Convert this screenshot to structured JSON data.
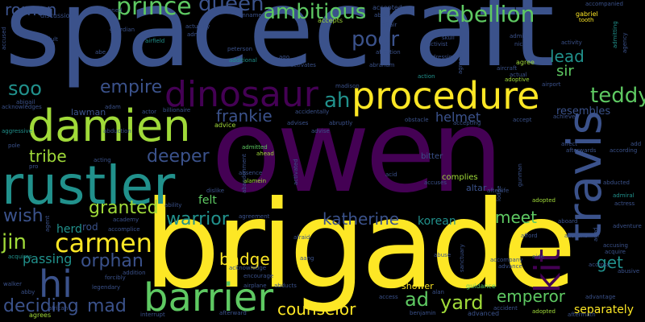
{
  "background": "#000000",
  "palette": {
    "yellow": "#fde725",
    "lime": "#a0da39",
    "green": "#4ac16d",
    "teal": "#1fa187",
    "cyan": "#277f8e",
    "blue": "#365c8d",
    "indigo": "#46327e",
    "purple": "#440154"
  },
  "words": [
    {
      "text": "spacecraft",
      "color": "#3b528b"
    },
    {
      "text": "owen",
      "color": "#440154"
    },
    {
      "text": "brigade",
      "color": "#fde725"
    },
    {
      "text": "rustler",
      "color": "#21918c"
    },
    {
      "text": "damien",
      "color": "#a0da39"
    },
    {
      "text": "procedure",
      "color": "#fde725"
    },
    {
      "text": "travis",
      "color": "#3b528b"
    },
    {
      "text": "dinosaur",
      "color": "#440154"
    },
    {
      "text": "barrier",
      "color": "#5ec962"
    },
    {
      "text": "hi",
      "color": "#3b528b"
    },
    {
      "text": "carmen",
      "color": "#fde725"
    },
    {
      "text": "kit",
      "color": "#440154"
    },
    {
      "text": "ambitious",
      "color": "#5ec962"
    },
    {
      "text": "rebellion",
      "color": "#5ec962"
    },
    {
      "text": "prince",
      "color": "#5ec962"
    },
    {
      "text": "queen",
      "color": "#3b528b"
    },
    {
      "text": "roman",
      "color": "#3b528b"
    },
    {
      "text": "poor",
      "color": "#3b528b"
    },
    {
      "text": "empire",
      "color": "#3b528b"
    },
    {
      "text": "soo",
      "color": "#21918c"
    },
    {
      "text": "ah",
      "color": "#21918c"
    },
    {
      "text": "teddy",
      "color": "#5ec962"
    },
    {
      "text": "lead",
      "color": "#21918c"
    },
    {
      "text": "sir",
      "color": "#5ec962"
    },
    {
      "text": "frankie",
      "color": "#3b528b"
    },
    {
      "text": "tribe",
      "color": "#a0da39"
    },
    {
      "text": "deeper",
      "color": "#3b528b"
    },
    {
      "text": "granted",
      "color": "#a0da39"
    },
    {
      "text": "wish",
      "color": "#3b528b"
    },
    {
      "text": "warrior",
      "color": "#21918c"
    },
    {
      "text": "katherine",
      "color": "#3b528b"
    },
    {
      "text": "meet",
      "color": "#5ec962"
    },
    {
      "text": "jin",
      "color": "#a0da39"
    },
    {
      "text": "orphan",
      "color": "#3b528b"
    },
    {
      "text": "badge",
      "color": "#fde725"
    },
    {
      "text": "passing",
      "color": "#21918c"
    },
    {
      "text": "deciding",
      "color": "#3b528b"
    },
    {
      "text": "mad",
      "color": "#3b528b"
    },
    {
      "text": "counselor",
      "color": "#fde725"
    },
    {
      "text": "ad",
      "color": "#5ec962"
    },
    {
      "text": "yard",
      "color": "#a0da39"
    },
    {
      "text": "emperor",
      "color": "#5ec962"
    },
    {
      "text": "get",
      "color": "#21918c"
    },
    {
      "text": "separately",
      "color": "#fde725"
    },
    {
      "text": "helmet",
      "color": "#3b528b"
    },
    {
      "text": "resembles",
      "color": "#3b528b"
    },
    {
      "text": "korean",
      "color": "#21918c"
    },
    {
      "text": "herd",
      "color": "#21918c"
    },
    {
      "text": "rod",
      "color": "#3b528b"
    },
    {
      "text": "felt",
      "color": "#5ec962"
    },
    {
      "text": "bitter",
      "color": "#3b528b"
    },
    {
      "text": "complies",
      "color": "#a0da39"
    },
    {
      "text": "altar",
      "color": "#3b528b"
    },
    {
      "text": "shower",
      "color": "#fde725"
    },
    {
      "text": "discussion",
      "color": "#3b528b"
    },
    {
      "text": "abandoned",
      "color": "#3b528b"
    },
    {
      "text": "accepted",
      "color": "#3b528b"
    },
    {
      "text": "accompanied",
      "color": "#3b528b"
    },
    {
      "text": "gabriel",
      "color": "#fde725"
    },
    {
      "text": "tooth",
      "color": "#fde725"
    },
    {
      "text": "accused",
      "color": "#3b528b"
    },
    {
      "text": "adult",
      "color": "#3b528b"
    },
    {
      "text": "guardian",
      "color": "#3b528b"
    },
    {
      "text": "unnamed",
      "color": "#3b528b"
    },
    {
      "text": "abbey",
      "color": "#3b528b"
    },
    {
      "text": "affair",
      "color": "#3b528b"
    },
    {
      "text": "accepts",
      "color": "#a0da39"
    },
    {
      "text": "skull",
      "color": "#3b528b"
    },
    {
      "text": "activist",
      "color": "#3b528b"
    },
    {
      "text": "admits",
      "color": "#3b528b"
    },
    {
      "text": "nick",
      "color": "#3b528b"
    },
    {
      "text": "activity",
      "color": "#3b528b"
    },
    {
      "text": "agency",
      "color": "#3b528b"
    },
    {
      "text": "airfield",
      "color": "#21918c"
    },
    {
      "text": "admit",
      "color": "#3b528b"
    },
    {
      "text": "actuality",
      "color": "#3b528b"
    },
    {
      "text": "peterson",
      "color": "#3b528b"
    },
    {
      "text": "additional",
      "color": "#21918c"
    },
    {
      "text": "ago",
      "color": "#3b528b"
    },
    {
      "text": "activates",
      "color": "#3b528b"
    },
    {
      "text": "abraham",
      "color": "#3b528b"
    },
    {
      "text": "affection",
      "color": "#3b528b"
    },
    {
      "text": "dressing",
      "color": "#3b528b"
    },
    {
      "text": "agree",
      "color": "#a0da39"
    },
    {
      "text": "action",
      "color": "#21918c"
    },
    {
      "text": "adoptive",
      "color": "#a0da39"
    },
    {
      "text": "madison",
      "color": "#3b528b"
    },
    {
      "text": "airport",
      "color": "#3b528b"
    },
    {
      "text": "abigail",
      "color": "#3b528b"
    },
    {
      "text": "acknowledges",
      "color": "#3b528b"
    },
    {
      "text": "lawman",
      "color": "#3b528b"
    },
    {
      "text": "adam",
      "color": "#3b528b"
    },
    {
      "text": "actor",
      "color": "#3b528b"
    },
    {
      "text": "billionaire",
      "color": "#3b528b"
    },
    {
      "text": "accidentally",
      "color": "#3b528b"
    },
    {
      "text": "advise",
      "color": "#3b528b"
    },
    {
      "text": "advice",
      "color": "#a0da39"
    },
    {
      "text": "advises",
      "color": "#3b528b"
    },
    {
      "text": "abruptly",
      "color": "#3b528b"
    },
    {
      "text": "obstacle",
      "color": "#3b528b"
    },
    {
      "text": "accepting",
      "color": "#3b528b"
    },
    {
      "text": "accept",
      "color": "#3b528b"
    },
    {
      "text": "achieve",
      "color": "#3b528b"
    },
    {
      "text": "aggressive",
      "color": "#21918c"
    },
    {
      "text": "abduction",
      "color": "#3b528b"
    },
    {
      "text": "admitted",
      "color": "#5ec962"
    },
    {
      "text": "ahead",
      "color": "#a0da39"
    },
    {
      "text": "affect",
      "color": "#3b528b"
    },
    {
      "text": "afterwards",
      "color": "#3b528b"
    },
    {
      "text": "according",
      "color": "#3b528b"
    },
    {
      "text": "pole",
      "color": "#3b528b"
    },
    {
      "text": "pro",
      "color": "#3b528b"
    },
    {
      "text": "acting",
      "color": "#3b528b"
    },
    {
      "text": "absence",
      "color": "#3b528b"
    },
    {
      "text": "alamein",
      "color": "#a0da39"
    },
    {
      "text": "accuses",
      "color": "#3b528b"
    },
    {
      "text": "afterlife",
      "color": "#3b528b"
    },
    {
      "text": "abducted",
      "color": "#3b528b"
    },
    {
      "text": "admiral",
      "color": "#21918c"
    },
    {
      "text": "actress",
      "color": "#3b528b"
    },
    {
      "text": "dislike",
      "color": "#3b528b"
    },
    {
      "text": "acid",
      "color": "#3b528b"
    },
    {
      "text": "ability",
      "color": "#3b528b"
    },
    {
      "text": "academy",
      "color": "#3b528b"
    },
    {
      "text": "accomplice",
      "color": "#3b528b"
    },
    {
      "text": "agreement",
      "color": "#3b528b"
    },
    {
      "text": "aboard",
      "color": "#3b528b"
    },
    {
      "text": "adventure",
      "color": "#3b528b"
    },
    {
      "text": "adopted",
      "color": "#a0da39"
    },
    {
      "text": "account",
      "color": "#3b528b"
    },
    {
      "text": "accusing",
      "color": "#3b528b"
    },
    {
      "text": "acquire",
      "color": "#3b528b"
    },
    {
      "text": "acquires",
      "color": "#21918c"
    },
    {
      "text": "forcibly",
      "color": "#3b528b"
    },
    {
      "text": "addition",
      "color": "#3b528b"
    },
    {
      "text": "acknowledge",
      "color": "#3b528b"
    },
    {
      "text": "encourage",
      "color": "#3b528b"
    },
    {
      "text": "afraid",
      "color": "#3b528b"
    },
    {
      "text": "aang",
      "color": "#3b528b"
    },
    {
      "text": "abuse",
      "color": "#3b528b"
    },
    {
      "text": "guidance",
      "color": "#5ec962"
    },
    {
      "text": "advance",
      "color": "#3b528b"
    },
    {
      "text": "accross",
      "color": "#3b528b"
    },
    {
      "text": "abusive",
      "color": "#3b528b"
    },
    {
      "text": "advantage",
      "color": "#3b528b"
    },
    {
      "text": "walker",
      "color": "#3b528b"
    },
    {
      "text": "abby",
      "color": "#3b528b"
    },
    {
      "text": "legendary",
      "color": "#3b528b"
    },
    {
      "text": "airplane",
      "color": "#3b528b"
    },
    {
      "text": "abducts",
      "color": "#3b528b"
    },
    {
      "text": "alan",
      "color": "#3b528b"
    },
    {
      "text": "accident",
      "color": "#3b528b"
    },
    {
      "text": "agrees",
      "color": "#a0da39"
    },
    {
      "text": "african",
      "color": "#3b528b"
    },
    {
      "text": "interrupt",
      "color": "#3b528b"
    },
    {
      "text": "afterward",
      "color": "#3b528b"
    },
    {
      "text": "access",
      "color": "#3b528b"
    },
    {
      "text": "benjamin",
      "color": "#3b528b"
    },
    {
      "text": "advanced",
      "color": "#3b528b"
    },
    {
      "text": "adopted",
      "color": "#a0da39"
    },
    {
      "text": "aftermath",
      "color": "#3b528b"
    },
    {
      "text": "gunman",
      "color": "#3b528b"
    },
    {
      "text": "lodge",
      "color": "#3b528b"
    },
    {
      "text": "admitting",
      "color": "#21918c"
    },
    {
      "text": "activated",
      "color": "#3b528b"
    },
    {
      "text": "abandonment",
      "color": "#3b528b"
    },
    {
      "text": "sanctuary",
      "color": "#3b528b"
    },
    {
      "text": "accompany",
      "color": "#3b528b"
    },
    {
      "text": "afford",
      "color": "#3b528b"
    },
    {
      "text": "agent",
      "color": "#3b528b"
    },
    {
      "text": "aircraft",
      "color": "#3b528b"
    },
    {
      "text": "agreeing",
      "color": "#3b528b"
    },
    {
      "text": "actual",
      "color": "#3b528b"
    },
    {
      "text": "abe",
      "color": "#3b528b"
    },
    {
      "text": "ended",
      "color": "#3b528b"
    },
    {
      "text": "aged",
      "color": "#3b528b"
    },
    {
      "text": "aide",
      "color": "#3b528b"
    },
    {
      "text": "add",
      "color": "#3b528b"
    }
  ]
}
